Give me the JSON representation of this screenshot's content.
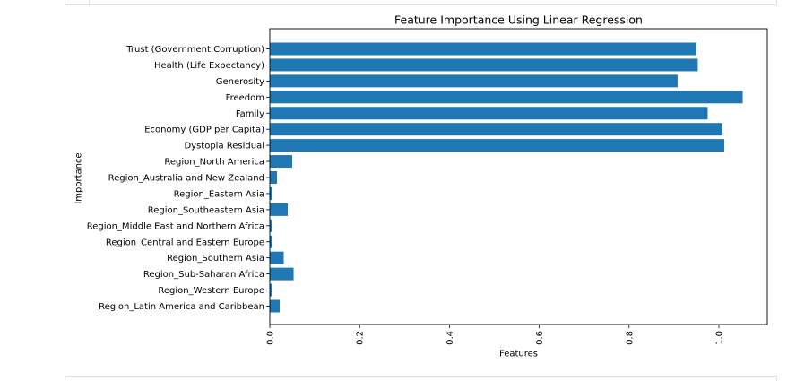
{
  "chart_data": {
    "type": "bar",
    "orientation": "horizontal",
    "title": "Feature Importance Using Linear Regression",
    "xlabel": "Features",
    "ylabel": "Importance",
    "xlim": [
      0,
      1.1
    ],
    "xticks": [
      0.0,
      0.2,
      0.4,
      0.6,
      0.8,
      1.0
    ],
    "xtick_labels": [
      "0.0",
      "0.2",
      "0.4",
      "0.6",
      "0.8",
      "1.0"
    ],
    "grid": false,
    "bar_color": "#1f77b4",
    "categories": [
      "Trust (Government Corruption)",
      "Health (Life Expectancy)",
      "Generosity",
      "Freedom",
      "Family",
      "Economy (GDP per Capita)",
      "Dystopia Residual",
      "Region_North America",
      "Region_Australia and New Zealand",
      "Region_Eastern Asia",
      "Region_Southeastern Asia",
      "Region_Middle East and Northern Africa",
      "Region_Central and Eastern Europe",
      "Region_Southern Asia",
      "Region_Sub-Saharan Africa",
      "Region_Western Europe",
      "Region_Latin America and Caribbean"
    ],
    "values": [
      0.95,
      0.953,
      0.908,
      1.053,
      0.975,
      1.008,
      1.012,
      0.05,
      0.016,
      0.006,
      0.04,
      0.005,
      0.006,
      0.031,
      0.053,
      0.005,
      0.022
    ]
  }
}
